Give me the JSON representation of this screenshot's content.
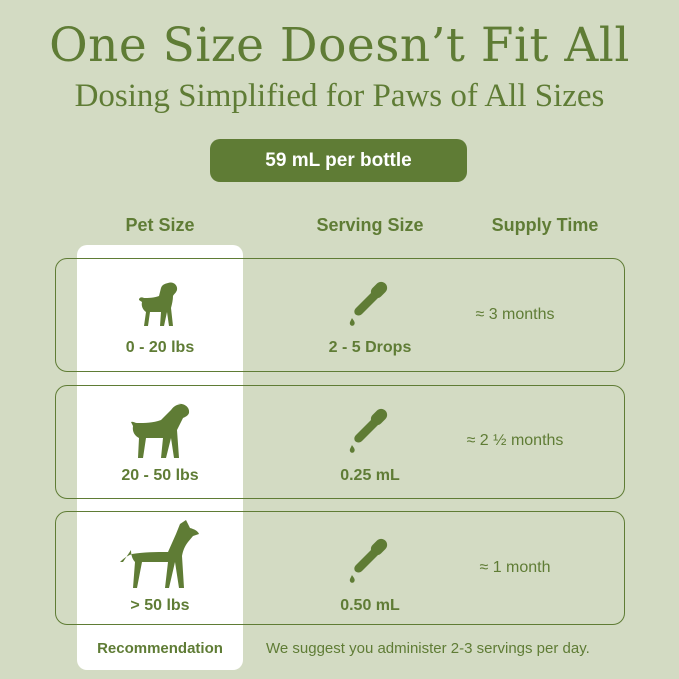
{
  "header": {
    "title": "One Size Doesn’t Fit All",
    "subtitle": "Dosing Simplified for Paws of All Sizes",
    "bottle_label": "59 mL per bottle"
  },
  "columns": [
    "Pet Size",
    "Serving Size",
    "Supply Time"
  ],
  "rows": [
    {
      "pet_size": "0 - 20 lbs",
      "serving": "2 - 5 Drops",
      "supply": "≈ 3 months",
      "icon": "small-dog-icon"
    },
    {
      "pet_size": "20 - 50 lbs",
      "serving": "0.25 mL",
      "supply": "≈ 2 ½ months",
      "icon": "medium-dog-icon"
    },
    {
      "pet_size": "> 50 lbs",
      "serving": "0.50 mL",
      "supply": "≈ 1 month",
      "icon": "large-dog-icon"
    }
  ],
  "footer": {
    "recommendation": "Recommendation",
    "note": "We suggest you administer 2-3 servings per day."
  },
  "colors": {
    "background": "#d3dbc3",
    "accent": "#5f7c35",
    "highlight": "#ffffff"
  }
}
